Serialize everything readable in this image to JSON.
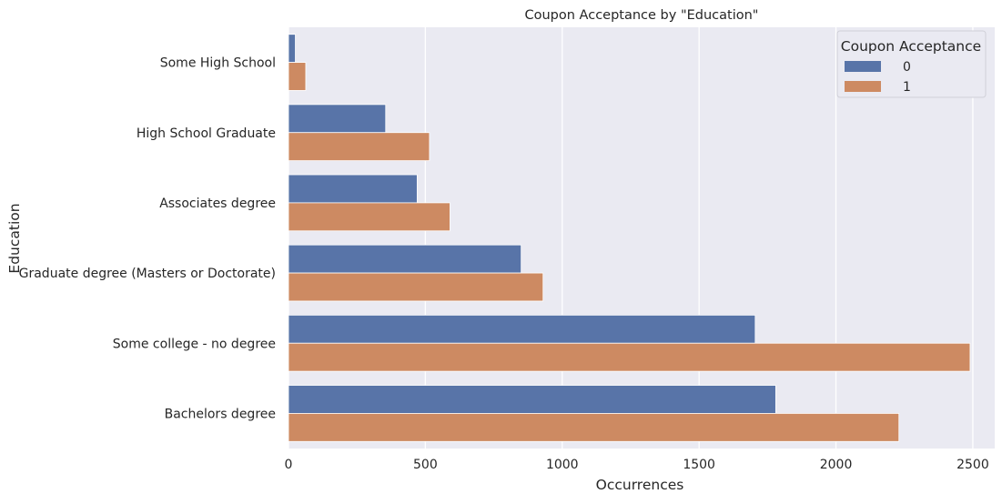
{
  "chart_data": {
    "type": "bar",
    "orientation": "horizontal",
    "title": "Coupon Acceptance by \"Education\"",
    "xlabel": "Occurrences",
    "ylabel": "Education",
    "categories": [
      "Some High School",
      "High School Graduate",
      "Associates degree",
      "Graduate degree (Masters or Doctorate)",
      "Some college - no degree",
      "Bachelors degree"
    ],
    "series": [
      {
        "name": "0",
        "color": "#5874a8",
        "values": [
          25,
          355,
          470,
          850,
          1705,
          1780
        ]
      },
      {
        "name": "1",
        "color": "#cd8a62",
        "values": [
          63,
          515,
          590,
          930,
          2490,
          2230
        ]
      }
    ],
    "xlim": [
      0,
      2580
    ],
    "xticks": [
      0,
      500,
      1000,
      1500,
      2000,
      2500
    ],
    "grid": true,
    "legend": {
      "title": "Coupon Acceptance",
      "position": "top-right"
    },
    "colors": {
      "background": "#eaeaf2",
      "grid": "#ffffff"
    }
  }
}
